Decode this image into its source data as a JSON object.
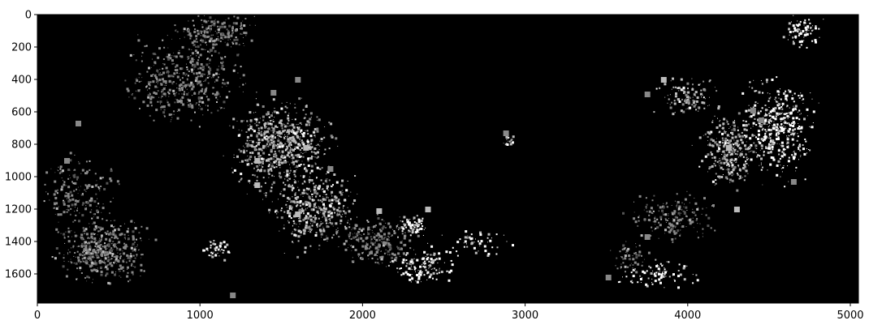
{
  "chart_data": {
    "type": "heatmap",
    "title": "",
    "xlabel": "",
    "ylabel": "",
    "xlim": [
      0,
      5050
    ],
    "ylim": [
      1780,
      0
    ],
    "x_ticks": [
      "0",
      "1000",
      "2000",
      "3000",
      "4000",
      "5000"
    ],
    "y_ticks": [
      "0",
      "200",
      "400",
      "600",
      "800",
      "1000",
      "1200",
      "1400",
      "1600"
    ],
    "x_tick_values": [
      0,
      1000,
      2000,
      3000,
      4000,
      5000
    ],
    "y_tick_values": [
      0,
      200,
      400,
      600,
      800,
      1000,
      1200,
      1400,
      1600
    ],
    "colormap": "gray",
    "value_levels": [
      "#000000",
      "#555555",
      "#888888",
      "#bbbbbb",
      "#ffffff"
    ],
    "grid": false,
    "clusters": [
      {
        "x": 400,
        "y": 1450,
        "w": 700,
        "h": 500,
        "n": 500,
        "level": 2
      },
      {
        "x": 250,
        "y": 1100,
        "w": 600,
        "h": 600,
        "n": 200,
        "level": 2
      },
      {
        "x": 900,
        "y": 400,
        "w": 900,
        "h": 700,
        "n": 500,
        "level": 2
      },
      {
        "x": 1500,
        "y": 800,
        "w": 800,
        "h": 700,
        "n": 700,
        "level": 3
      },
      {
        "x": 1700,
        "y": 1200,
        "w": 700,
        "h": 600,
        "n": 450,
        "level": 3
      },
      {
        "x": 1100,
        "y": 100,
        "w": 600,
        "h": 300,
        "n": 200,
        "level": 2
      },
      {
        "x": 2100,
        "y": 1400,
        "w": 600,
        "h": 400,
        "n": 250,
        "level": 2
      },
      {
        "x": 2350,
        "y": 1550,
        "w": 500,
        "h": 300,
        "n": 150,
        "level": 4
      },
      {
        "x": 2300,
        "y": 1300,
        "w": 250,
        "h": 200,
        "n": 80,
        "level": 4
      },
      {
        "x": 2700,
        "y": 1400,
        "w": 500,
        "h": 200,
        "n": 50,
        "level": 4
      },
      {
        "x": 1100,
        "y": 1450,
        "w": 200,
        "h": 200,
        "n": 50,
        "level": 4
      },
      {
        "x": 2900,
        "y": 780,
        "w": 120,
        "h": 120,
        "n": 25,
        "level": 3
      },
      {
        "x": 4550,
        "y": 700,
        "w": 600,
        "h": 800,
        "n": 450,
        "level": 4
      },
      {
        "x": 4250,
        "y": 850,
        "w": 500,
        "h": 600,
        "n": 300,
        "level": 3
      },
      {
        "x": 4700,
        "y": 100,
        "w": 300,
        "h": 250,
        "n": 80,
        "level": 4
      },
      {
        "x": 3900,
        "y": 1250,
        "w": 700,
        "h": 400,
        "n": 200,
        "level": 2
      },
      {
        "x": 3800,
        "y": 1600,
        "w": 600,
        "h": 250,
        "n": 90,
        "level": 4
      },
      {
        "x": 4000,
        "y": 500,
        "w": 500,
        "h": 300,
        "n": 120,
        "level": 3
      },
      {
        "x": 3650,
        "y": 1500,
        "w": 300,
        "h": 300,
        "n": 60,
        "level": 2
      }
    ],
    "squares": [
      {
        "x": 250,
        "y": 670,
        "level": 2
      },
      {
        "x": 180,
        "y": 900,
        "level": 2
      },
      {
        "x": 1350,
        "y": 900,
        "level": 3
      },
      {
        "x": 1800,
        "y": 950,
        "level": 2
      },
      {
        "x": 1650,
        "y": 820,
        "level": 3
      },
      {
        "x": 1600,
        "y": 1230,
        "level": 3
      },
      {
        "x": 2100,
        "y": 1210,
        "level": 3
      },
      {
        "x": 2400,
        "y": 1200,
        "level": 3
      },
      {
        "x": 1200,
        "y": 1730,
        "level": 2
      },
      {
        "x": 1450,
        "y": 480,
        "level": 2
      },
      {
        "x": 1600,
        "y": 400,
        "level": 2
      },
      {
        "x": 4250,
        "y": 820,
        "level": 3
      },
      {
        "x": 4400,
        "y": 590,
        "level": 2
      },
      {
        "x": 4450,
        "y": 650,
        "level": 2
      },
      {
        "x": 4650,
        "y": 1030,
        "level": 2
      },
      {
        "x": 4300,
        "y": 1200,
        "level": 3
      },
      {
        "x": 3850,
        "y": 400,
        "level": 3
      },
      {
        "x": 3750,
        "y": 490,
        "level": 2
      },
      {
        "x": 3750,
        "y": 1370,
        "level": 2
      },
      {
        "x": 3510,
        "y": 1620,
        "level": 2
      },
      {
        "x": 2880,
        "y": 730,
        "level": 2
      },
      {
        "x": 1350,
        "y": 1050,
        "level": 3
      }
    ]
  }
}
